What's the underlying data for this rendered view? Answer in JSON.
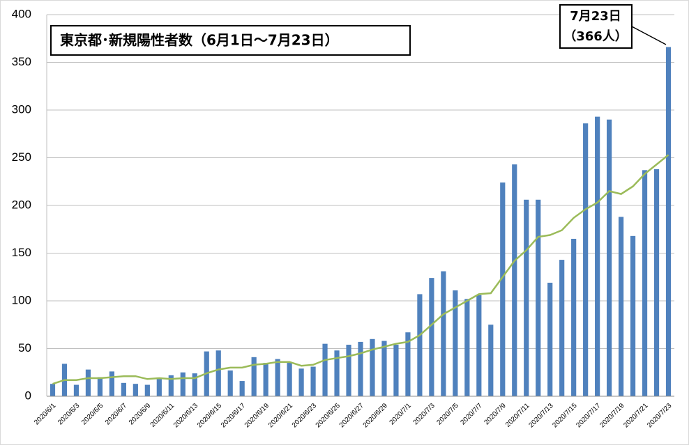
{
  "chart_data": {
    "type": "bar",
    "title": "東京都･新規陽性者数（6月1日～7月23日）",
    "annotation": [
      "7月23日",
      "（366人）"
    ],
    "categories": [
      "2020/6/1",
      null,
      "2020/6/3",
      null,
      "2020/6/5",
      null,
      "2020/6/7",
      null,
      "2020/6/9",
      null,
      "2020/6/11",
      null,
      "2020/6/13",
      null,
      "2020/6/15",
      null,
      "2020/6/17",
      null,
      "2020/6/19",
      null,
      "2020/6/21",
      null,
      "2020/6/23",
      null,
      "2020/6/25",
      null,
      "2020/6/27",
      null,
      "2020/6/29",
      null,
      "2020/7/1",
      null,
      "2020/7/3",
      null,
      "2020/7/5",
      null,
      "2020/7/7",
      null,
      "2020/7/9",
      null,
      "2020/7/11",
      null,
      "2020/7/13",
      null,
      "2020/7/15",
      null,
      "2020/7/17",
      null,
      "2020/7/19",
      null,
      "2020/7/21",
      null,
      "2020/7/23"
    ],
    "series": [
      {
        "type": "bar",
        "color": "#4f81bd",
        "values": [
          13,
          34,
          12,
          28,
          20,
          26,
          14,
          13,
          12,
          18,
          22,
          25,
          24,
          47,
          48,
          27,
          16,
          41,
          35,
          39,
          35,
          29,
          31,
          55,
          48,
          54,
          57,
          60,
          58,
          54,
          67,
          107,
          124,
          131,
          111,
          102,
          106,
          75,
          224,
          243,
          206,
          206,
          119,
          143,
          165,
          286,
          293,
          290,
          188,
          168,
          237,
          238,
          366
        ]
      },
      {
        "type": "line",
        "color": "#9bbb59",
        "values": [
          13,
          17,
          17,
          19,
          19,
          20,
          21,
          21,
          18,
          19,
          18,
          19,
          19,
          24,
          28,
          30,
          30,
          33,
          34,
          36,
          36,
          32,
          33,
          38,
          40,
          42,
          45,
          49,
          52,
          55,
          57,
          64,
          75,
          86,
          93,
          100,
          107,
          108,
          125,
          142,
          153,
          167,
          169,
          174,
          187,
          196,
          203,
          215,
          212,
          220,
          233,
          243,
          253
        ]
      }
    ],
    "ylim": [
      0,
      400
    ],
    "yticks": [
      0,
      50,
      100,
      150,
      200,
      250,
      300,
      350,
      400
    ],
    "grid": true
  }
}
